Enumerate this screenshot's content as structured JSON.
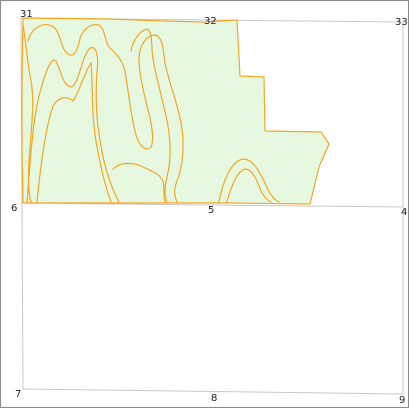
{
  "map": {
    "colors": {
      "background": "#ffffff",
      "section_line": "#c8c8c8",
      "field_fill": "#e6f9e0",
      "field_outline": "#f5a623",
      "frame_border": "#8a8a8a",
      "label_text": "#222222"
    },
    "section_corners": {
      "top_left": "31",
      "top_middle": "32",
      "top_right": "33",
      "middle_left": "6",
      "middle_center": "5",
      "middle_right": "4",
      "bottom_left": "7",
      "bottom_middle": "8",
      "bottom_right": "9"
    }
  }
}
